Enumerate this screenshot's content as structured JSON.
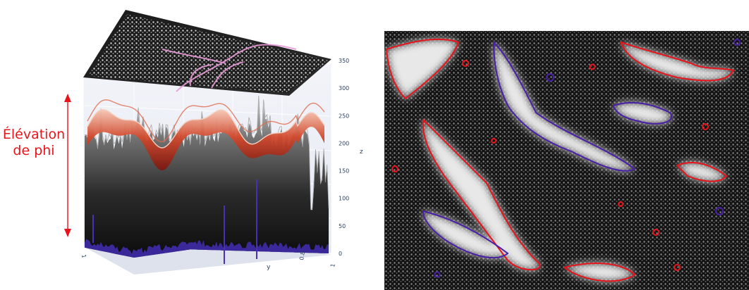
{
  "chart_data": [
    {
      "type": "surface3d",
      "title": "",
      "annotation": {
        "line1": "Élévation",
        "line2": "de phi"
      },
      "axes": {
        "x": {
          "label": "",
          "ticks": [
            "1"
          ]
        },
        "y": {
          "label": "y",
          "ticks": [
            "0.8",
            "1"
          ]
        },
        "z": {
          "label": "z",
          "ticks": [
            "0",
            "50",
            "100",
            "150",
            "200",
            "250",
            "300",
            "350"
          ],
          "range": [
            0,
            350
          ]
        }
      },
      "surfaces": [
        {
          "name": "",
          "description": "noisy dark-grey height field",
          "colorscale": [
            "#3b1fb5",
            "#111111",
            "#5a5a5a",
            "#d8d8d8"
          ],
          "z_range": [
            0,
            330
          ]
        },
        {
          "name": "",
          "description": "smooth sinusoidal phi surface",
          "colorscale": [
            "#d7301f",
            "#f4a582",
            "#fddbc7"
          ],
          "z_range": [
            200,
            250
          ]
        }
      ],
      "projection": {
        "plane": "top",
        "colors": [
          "#000000",
          "#ffffff",
          "#e38ad0"
        ]
      },
      "background_color": "#eaeef6",
      "grid": true
    },
    {
      "type": "heatmap",
      "description": "grayscale intensity image with red/purple level-set contour overlay",
      "colorscale": [
        "#000000",
        "#ffffff"
      ],
      "contour_colors": [
        "#e8141c",
        "#4a1fa8"
      ]
    }
  ]
}
